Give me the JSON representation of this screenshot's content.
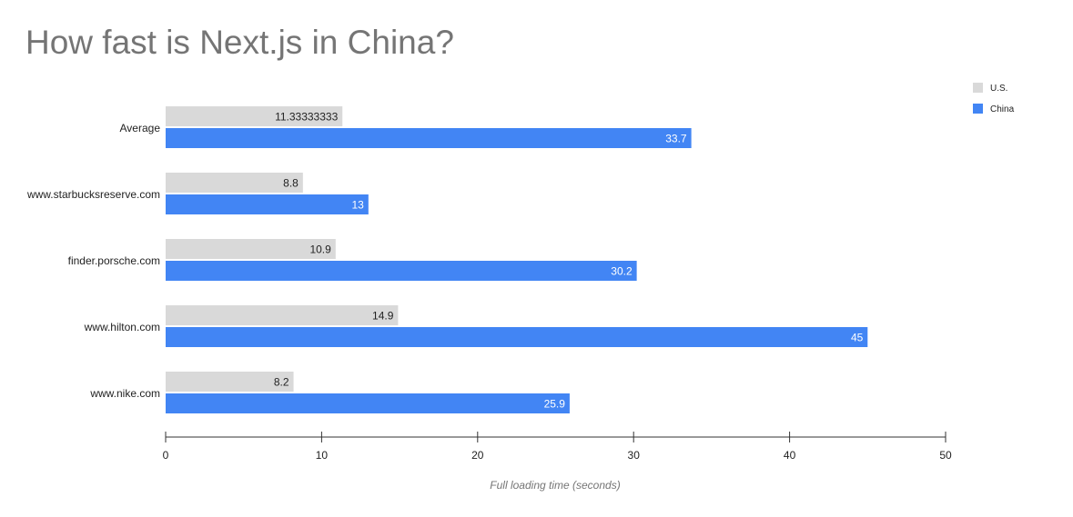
{
  "chart_data": {
    "type": "bar",
    "orientation": "horizontal",
    "title": "How fast is Next.js in China?",
    "xlabel": "Full loading time (seconds)",
    "ylabel": "",
    "categories": [
      "Average",
      "www.starbucksreserve.com",
      "finder.porsche.com",
      "www.hilton.com",
      "www.nike.com"
    ],
    "series": [
      {
        "name": "U.S.",
        "values": [
          11.33333333,
          8.8,
          10.9,
          14.9,
          8.2
        ],
        "labels": [
          "11.33333333",
          "8.8",
          "10.9",
          "14.9",
          "8.2"
        ],
        "color": "#d9d9d9",
        "label_color": "#222222"
      },
      {
        "name": "China",
        "values": [
          33.7,
          13,
          30.2,
          45,
          25.9
        ],
        "labels": [
          "33.7",
          "13",
          "30.2",
          "45",
          "25.9"
        ],
        "color": "#4285f4",
        "label_color": "#ffffff"
      }
    ],
    "xlim": [
      0,
      50
    ],
    "xticks": [
      0,
      10,
      20,
      30,
      40,
      50
    ],
    "grid": false,
    "legend_position": "top-right"
  }
}
